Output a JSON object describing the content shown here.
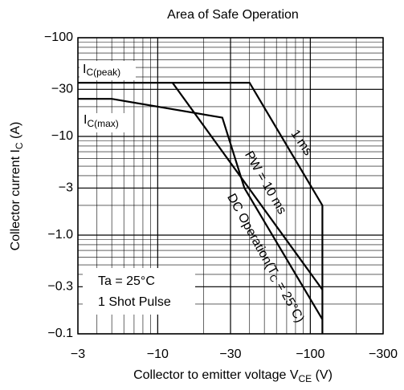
{
  "chart_data": {
    "type": "line",
    "title": "Area of Safe Operation",
    "xlabel": {
      "text": "Collector to emitter voltage  V",
      "sub": "CE",
      "after": "  (V)"
    },
    "ylabel": {
      "text": "Collector current  I",
      "sub": "C",
      "after": "  (A)"
    },
    "log_x": true,
    "log_y": true,
    "grid": true,
    "minor_grid": true,
    "xlim": [
      -3,
      -300
    ],
    "ylim": [
      -0.1,
      -100
    ],
    "xticks": [
      {
        "value": -3,
        "label": "−3"
      },
      {
        "value": -10,
        "label": "−10"
      },
      {
        "value": -30,
        "label": "−30"
      },
      {
        "value": -100,
        "label": "−100"
      },
      {
        "value": -300,
        "label": "−300"
      }
    ],
    "yticks": [
      {
        "value": -0.1,
        "label": "−0.1"
      },
      {
        "value": -0.3,
        "label": "−0.3"
      },
      {
        "value": -1,
        "label": "−1.0"
      },
      {
        "value": -3,
        "label": "−3"
      },
      {
        "value": -10,
        "label": "−10"
      },
      {
        "value": -30,
        "label": "−30"
      },
      {
        "value": -100,
        "label": "−100"
      }
    ],
    "series": [
      {
        "name": "1 ms",
        "color": "#000000",
        "x": [
          -3,
          -40,
          -120,
          -120
        ],
        "values": [
          -35,
          -35,
          -2,
          -0.1
        ]
      },
      {
        "name": "PW = 10 ms",
        "color": "#000000",
        "x": [
          -12.5,
          -120
        ],
        "values": [
          -35,
          -0.28
        ]
      },
      {
        "name": "DC Operation",
        "color": "#000000",
        "x": [
          -3,
          -5,
          -26.5,
          -37,
          -120
        ],
        "values": [
          -24,
          -24,
          -15.5,
          -3,
          -0.14
        ]
      }
    ],
    "annotations": {
      "ic_peak": {
        "text": "I",
        "sub": "C(peak)"
      },
      "ic_max": {
        "text": "I",
        "sub": "C(max)"
      },
      "dc_condition": {
        "text": "(T",
        "sub": "C",
        "after": " = 25°C)"
      },
      "ta": "Ta = 25°C",
      "pulse": "1 Shot Pulse"
    }
  }
}
